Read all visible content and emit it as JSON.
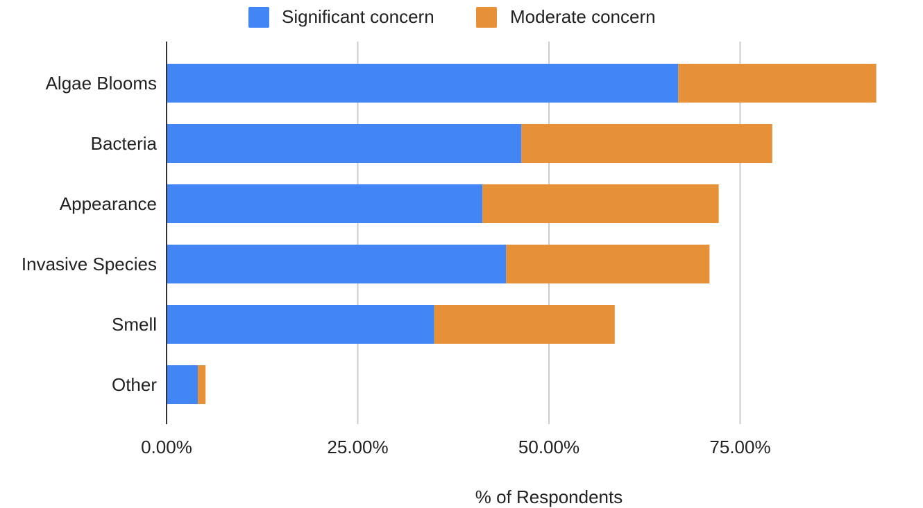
{
  "chart_data": {
    "type": "bar",
    "orientation": "horizontal",
    "stacked": true,
    "categories": [
      "Algae Blooms",
      "Bacteria",
      "Appearance",
      "Invasive Species",
      "Smell",
      "Other"
    ],
    "series": [
      {
        "name": "Significant concern",
        "color": "#4285f4",
        "values": [
          66.9,
          46.4,
          41.3,
          44.4,
          35.0,
          4.1
        ]
      },
      {
        "name": "Moderate concern",
        "color": "#e69138",
        "values": [
          25.9,
          32.8,
          30.9,
          26.6,
          23.6,
          1.0
        ]
      }
    ],
    "xlabel": "% of Respondents",
    "ylabel": "",
    "xlim": [
      0,
      95
    ],
    "xticks": [
      0,
      25,
      50,
      75
    ],
    "xtick_labels": [
      "0.00%",
      "25.00%",
      "50.00%",
      "75.00%"
    ],
    "grid": true,
    "legend_position": "top"
  }
}
